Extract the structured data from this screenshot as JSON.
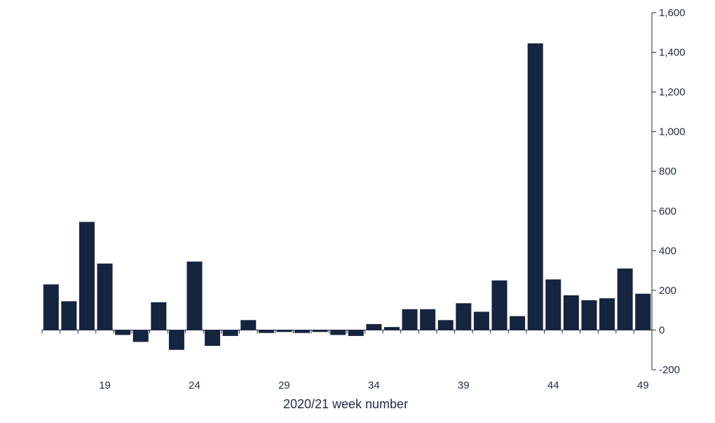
{
  "chart_data": {
    "type": "bar",
    "xlabel": "2020/21 week number",
    "ylabel": "",
    "title": "",
    "bar_color": "#15243f",
    "ylim": [
      -200,
      1600
    ],
    "yticks": [
      -200,
      0,
      200,
      400,
      600,
      800,
      1000,
      1200,
      1400,
      1600
    ],
    "ytick_labels": [
      "-200",
      "0",
      "200",
      "400",
      "600",
      "800",
      "1,000",
      "1,200",
      "1,400",
      "1,600"
    ],
    "xtick_labels": [
      "19",
      "24",
      "29",
      "34",
      "39",
      "44",
      "49"
    ],
    "xtick_weeks": [
      19,
      24,
      29,
      34,
      39,
      44,
      49
    ],
    "weeks": [
      16,
      17,
      18,
      19,
      20,
      21,
      22,
      23,
      24,
      25,
      26,
      27,
      28,
      29,
      30,
      31,
      32,
      33,
      34,
      35,
      36,
      37,
      38,
      39,
      40,
      41,
      42,
      43,
      44,
      45,
      46,
      47,
      48,
      49
    ],
    "values": [
      230,
      145,
      545,
      335,
      -25,
      -60,
      140,
      -100,
      345,
      -80,
      -30,
      50,
      -15,
      -10,
      -15,
      -10,
      -25,
      -30,
      30,
      15,
      105,
      105,
      50,
      135,
      92,
      250,
      70,
      1445,
      255,
      175,
      150,
      160,
      310,
      183
    ],
    "yaxis_side": "right",
    "grid": false
  }
}
